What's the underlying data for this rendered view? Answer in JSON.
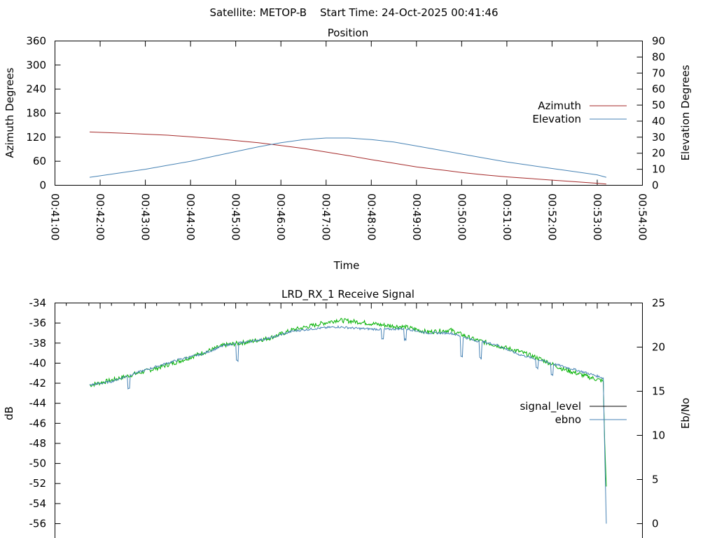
{
  "header": {
    "satellite": "Satellite: METOP-B",
    "start_time": "Start Time: 24-Oct-2025 00:41:46"
  },
  "chart_data": [
    {
      "type": "line",
      "title": "Position",
      "xlabel": "Time",
      "ylabel": "Azimuth Degrees",
      "y2label": "Elevation Degrees",
      "xlim": [
        "00:41:00",
        "00:54:00"
      ],
      "ylim": [
        0,
        360
      ],
      "y2lim": [
        0,
        90
      ],
      "xticks": [
        "00:41:00",
        "00:42:00",
        "00:43:00",
        "00:44:00",
        "00:45:00",
        "00:46:00",
        "00:47:00",
        "00:48:00",
        "00:49:00",
        "00:50:00",
        "00:51:00",
        "00:52:00",
        "00:53:00",
        "00:54:00"
      ],
      "yticks": [
        0,
        60,
        120,
        180,
        240,
        300,
        360
      ],
      "y2ticks": [
        0,
        10,
        20,
        30,
        40,
        50,
        60,
        70,
        80,
        90
      ],
      "legend_position": "right",
      "colors": {
        "Azimuth": "#a52a2a",
        "Elevation": "#4682b4"
      },
      "series": [
        {
          "name": "Azimuth",
          "axis": "y",
          "x": [
            "00:41:46",
            "00:42:30",
            "00:43:30",
            "00:44:30",
            "00:45:30",
            "00:46:00",
            "00:46:30",
            "00:47:00",
            "00:47:30",
            "00:48:00",
            "00:48:30",
            "00:49:00",
            "00:49:30",
            "00:50:00",
            "00:50:30",
            "00:51:00",
            "00:51:30",
            "00:52:00",
            "00:52:30",
            "00:53:00",
            "00:53:12"
          ],
          "values": [
            133,
            130,
            125,
            117,
            106,
            99,
            92,
            83,
            74,
            64,
            55,
            46,
            39,
            32,
            26,
            21,
            17,
            13,
            9,
            5,
            3
          ]
        },
        {
          "name": "Elevation",
          "axis": "y2",
          "x": [
            "00:41:46",
            "00:42:30",
            "00:43:00",
            "00:43:30",
            "00:44:00",
            "00:44:30",
            "00:45:00",
            "00:45:30",
            "00:46:00",
            "00:46:30",
            "00:47:00",
            "00:47:30",
            "00:48:00",
            "00:48:30",
            "00:49:00",
            "00:49:30",
            "00:50:00",
            "00:50:30",
            "00:51:00",
            "00:51:30",
            "00:52:00",
            "00:52:30",
            "00:53:00",
            "00:53:12"
          ],
          "values": [
            5,
            8,
            10,
            12.5,
            15,
            18,
            21,
            24,
            26.5,
            28.5,
            29.5,
            29.5,
            28.5,
            27,
            24.5,
            22,
            19.5,
            17,
            14.5,
            12.5,
            10.5,
            8.5,
            6.5,
            5
          ]
        }
      ]
    },
    {
      "type": "line",
      "title": "LRD_RX_1 Receive Signal",
      "ylabel": "dB",
      "y2label": "Eb/No",
      "xlim": [
        "00:41:00",
        "00:54:00"
      ],
      "ylim": [
        -56,
        -34
      ],
      "y2lim": [
        0,
        25
      ],
      "yticks": [
        -56,
        -54,
        -52,
        -50,
        -48,
        -46,
        -44,
        -42,
        -40,
        -38,
        -36,
        -34
      ],
      "y2ticks": [
        0,
        5,
        10,
        15,
        20,
        25
      ],
      "legend_position": "right",
      "colors": {
        "signal_level": "#000000",
        "ebno": "#4682b4",
        "signal_trace": "#00b000"
      },
      "series": [
        {
          "name": "signal_level",
          "axis": "y",
          "x": [
            "00:41:46",
            "00:42:15",
            "00:42:45",
            "00:43:15",
            "00:43:45",
            "00:44:15",
            "00:44:45",
            "00:45:15",
            "00:45:45",
            "00:46:15",
            "00:46:45",
            "00:47:15",
            "00:47:45",
            "00:48:15",
            "00:48:45",
            "00:49:15",
            "00:49:45",
            "00:50:15",
            "00:50:45",
            "00:51:15",
            "00:51:45",
            "00:52:15",
            "00:52:45",
            "00:53:08",
            "00:53:10",
            "00:53:12"
          ],
          "values": [
            -42.2,
            -41.7,
            -41.1,
            -40.5,
            -39.8,
            -39.0,
            -38.2,
            -37.9,
            -37.5,
            -36.7,
            -36.2,
            -35.7,
            -35.9,
            -36.2,
            -36.4,
            -36.9,
            -36.7,
            -37.6,
            -38.2,
            -38.8,
            -39.6,
            -40.6,
            -41.3,
            -41.8,
            -48.0,
            -52.3
          ]
        },
        {
          "name": "ebno",
          "axis": "y2",
          "x": [
            "00:41:46",
            "00:42:15",
            "00:42:45",
            "00:43:15",
            "00:43:45",
            "00:44:15",
            "00:44:45",
            "00:45:15",
            "00:45:45",
            "00:46:15",
            "00:46:45",
            "00:47:15",
            "00:47:45",
            "00:48:15",
            "00:48:45",
            "00:49:15",
            "00:49:45",
            "00:50:15",
            "00:50:45",
            "00:51:15",
            "00:51:45",
            "00:52:15",
            "00:52:45",
            "00:53:08",
            "00:53:10",
            "00:53:12"
          ],
          "values": [
            15.7,
            16.1,
            17.0,
            17.8,
            18.6,
            19.2,
            20.2,
            20.6,
            21.0,
            21.8,
            22.1,
            22.3,
            22.1,
            22.0,
            22.1,
            21.6,
            21.6,
            20.8,
            20.3,
            19.2,
            18.5,
            17.8,
            17.1,
            16.5,
            8.0,
            0
          ]
        }
      ]
    }
  ]
}
